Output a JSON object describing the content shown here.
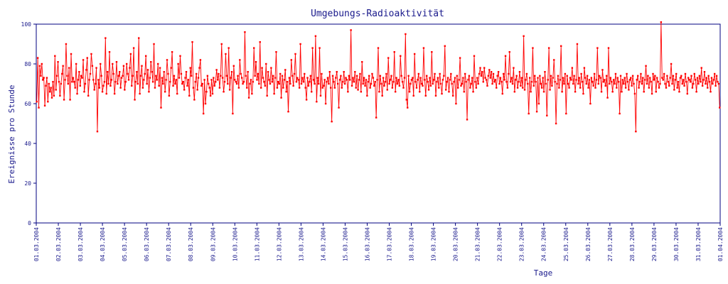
{
  "chart_data": {
    "type": "line",
    "title": "Umgebungs-Radioaktivität",
    "xlabel": "Tage",
    "ylabel": "Ereignisse pro Stunde",
    "ylim": [
      0,
      100
    ],
    "yticks": [
      0,
      20,
      40,
      60,
      80,
      100
    ],
    "x_range": [
      "01.03.2004",
      "01.04.2004"
    ],
    "x_tick_labels": [
      "01.03.2004",
      "02.03.2004",
      "03.03.2004",
      "04.03.2004",
      "05.03.2004",
      "06.03.2004",
      "07.03.2004",
      "08.03.2004",
      "09.03.2004",
      "10.03.2004",
      "11.03.2004",
      "12.03.2004",
      "13.03.2004",
      "14.03.2004",
      "15.03.2004",
      "16.03.2004",
      "17.03.2004",
      "18.03.2004",
      "19.03.2004",
      "20.03.2004",
      "21.03.2004",
      "22.03.2004",
      "23.03.2004",
      "24.03.2004",
      "25.03.2004",
      "26.03.2004",
      "27.03.2004",
      "28.03.2004",
      "29.03.2004",
      "30.03.2004",
      "31.03.2004",
      "01.04.2004"
    ],
    "grid": false,
    "marker": "square",
    "colors": {
      "series": "#ff0000",
      "axis": "#000080",
      "text": "#1a1a8c"
    },
    "series": [
      {
        "values": [
          61,
          83,
          58,
          79,
          74,
          80,
          72,
          73,
          59,
          69,
          73,
          61,
          70,
          66,
          68,
          63,
          71,
          64,
          84,
          67,
          74,
          81,
          71,
          64,
          70,
          75,
          79,
          62,
          72,
          90,
          74,
          70,
          78,
          62,
          85,
          71,
          73,
          71,
          68,
          80,
          65,
          72,
          76,
          69,
          74,
          73,
          82,
          66,
          70,
          77,
          83,
          64,
          72,
          75,
          85,
          79,
          72,
          67,
          70,
          78,
          46,
          72,
          68,
          80,
          74,
          66,
          69,
          71,
          93,
          65,
          76,
          70,
          86,
          69,
          72,
          80,
          75,
          65,
          71,
          81,
          70,
          74,
          76,
          68,
          73,
          74,
          79,
          67,
          71,
          80,
          75,
          72,
          78,
          85,
          69,
          74,
          88,
          62,
          71,
          76,
          70,
          93,
          65,
          74,
          79,
          68,
          72,
          75,
          84,
          70,
          77,
          66,
          73,
          81,
          76,
          71,
          90,
          68,
          74,
          72,
          80,
          69,
          78,
          58,
          73,
          70,
          76,
          66,
          72,
          82,
          75,
          64,
          71,
          78,
          86,
          69,
          74,
          70,
          72,
          65,
          80,
          73,
          84,
          75,
          70,
          71,
          67,
          73,
          76,
          69,
          72,
          64,
          78,
          74,
          91,
          68,
          62,
          71,
          75,
          67,
          73,
          78,
          82,
          69,
          70,
          55,
          72,
          60,
          66,
          74,
          70,
          68,
          64,
          72,
          65,
          73,
          69,
          71,
          77,
          72,
          75,
          68,
          74,
          90,
          73,
          66,
          71,
          85,
          74,
          70,
          88,
          67,
          73,
          76,
          55,
          79,
          72,
          71,
          70,
          74,
          68,
          82,
          75,
          73,
          70,
          71,
          96,
          74,
          68,
          76,
          63,
          70,
          72,
          65,
          71,
          88,
          74,
          81,
          72,
          75,
          70,
          91,
          68,
          78,
          73,
          71,
          69,
          80,
          64,
          76,
          72,
          70,
          78,
          71,
          74,
          65,
          73,
          86,
          68,
          71,
          70,
          75,
          63,
          74,
          68,
          72,
          77,
          66,
          71,
          56,
          73,
          70,
          82,
          74,
          69,
          75,
          85,
          71,
          73,
          72,
          68,
          90,
          70,
          73,
          71,
          75,
          68,
          62,
          73,
          69,
          71,
          74,
          66,
          88,
          72,
          70,
          94,
          61,
          73,
          70,
          88,
          64,
          75,
          68,
          69,
          72,
          60,
          71,
          73,
          70,
          76,
          68,
          51,
          74,
          71,
          68,
          73,
          76,
          70,
          58,
          72,
          74,
          68,
          71,
          76,
          70,
          73,
          72,
          66,
          74,
          72,
          97,
          69,
          73,
          71,
          76,
          68,
          74,
          67,
          72,
          75,
          66,
          81,
          70,
          73,
          69,
          72,
          64,
          71,
          74,
          68,
          70,
          75,
          73,
          69,
          71,
          53,
          72,
          88,
          66,
          74,
          70,
          64,
          73,
          69,
          71,
          75,
          67,
          83,
          70,
          72,
          74,
          68,
          71,
          86,
          66,
          73,
          70,
          72,
          69,
          84,
          74,
          71,
          68,
          73,
          95,
          62,
          58,
          74,
          66,
          70,
          72,
          73,
          64,
          85,
          71,
          68,
          72,
          75,
          66,
          73,
          70,
          69,
          88,
          72,
          64,
          74,
          71,
          67,
          73,
          69,
          86,
          70,
          72,
          75,
          64,
          71,
          73,
          68,
          75,
          70,
          65,
          72,
          74,
          89,
          67,
          71,
          73,
          66,
          72,
          75,
          70,
          64,
          71,
          73,
          60,
          74,
          68,
          72,
          83,
          69,
          70,
          73,
          66,
          75,
          71,
          52,
          72,
          74,
          68,
          70,
          73,
          66,
          84,
          71,
          68,
          73,
          70,
          75,
          78,
          74,
          76,
          71,
          78,
          73,
          72,
          69,
          74,
          77,
          73,
          76,
          70,
          75,
          71,
          72,
          68,
          74,
          76,
          70,
          73,
          71,
          65,
          75,
          72,
          84,
          71,
          68,
          75,
          86,
          71,
          73,
          70,
          78,
          66,
          72,
          74,
          68,
          71,
          76,
          69,
          73,
          68,
          94,
          67,
          72,
          75,
          70,
          55,
          73,
          66,
          71,
          88,
          69,
          74,
          71,
          56,
          73,
          60,
          74,
          70,
          68,
          73,
          66,
          76,
          70,
          54,
          72,
          88,
          67,
          74,
          69,
          73,
          82,
          71,
          50,
          70,
          74,
          68,
          72,
          89,
          66,
          73,
          70,
          75,
          55,
          74,
          70,
          68,
          73,
          72,
          78,
          70,
          74,
          66,
          72,
          90,
          70,
          73,
          68,
          75,
          71,
          65,
          78,
          73,
          70,
          74,
          68,
          72,
          60,
          73,
          71,
          69,
          75,
          68,
          72,
          88,
          70,
          74,
          73,
          66,
          77,
          71,
          72,
          69,
          74,
          63,
          88,
          70,
          73,
          71,
          66,
          72,
          70,
          75,
          68,
          73,
          71,
          55,
          74,
          66,
          72,
          70,
          73,
          68,
          75,
          71,
          67,
          72,
          73,
          69,
          74,
          70,
          65,
          46,
          72,
          74,
          68,
          71,
          75,
          70,
          73,
          66,
          72,
          79,
          70,
          74,
          68,
          73,
          71,
          65,
          75,
          72,
          74,
          66,
          73,
          71,
          68,
          70,
          101,
          73,
          72,
          75,
          70,
          68,
          74,
          71,
          69,
          73,
          80,
          70,
          74,
          67,
          72,
          75,
          68,
          71,
          66,
          73,
          74,
          70,
          72,
          69,
          75,
          71,
          65,
          73,
          72,
          71,
          74,
          68,
          70,
          75,
          72,
          66,
          73,
          70,
          74,
          71,
          78,
          69,
          72,
          76,
          70,
          73,
          68,
          74,
          71,
          66,
          73,
          70,
          72,
          75,
          69,
          74,
          71,
          70,
          58
        ]
      }
    ]
  }
}
